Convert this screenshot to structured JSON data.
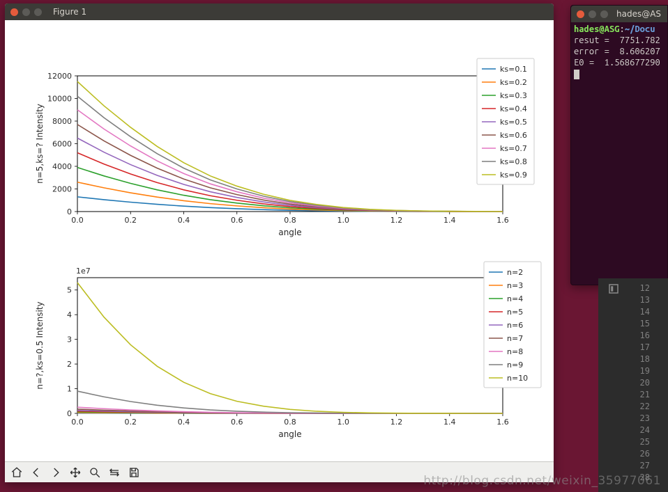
{
  "desktop": {
    "background_color": "#6a1633"
  },
  "figure_window": {
    "title": "Figure 1",
    "titlebar_bg": "#3c3b37",
    "titlebar_fg": "#d7d3cc",
    "close_color": "#e55b3c",
    "min_color": "#5c5b57",
    "max_color": "#5c5b57",
    "toolbar": {
      "buttons": [
        "home",
        "back",
        "forward",
        "pan",
        "zoom",
        "subplots",
        "save"
      ]
    },
    "chart1": {
      "type": "line",
      "xlabel": "angle",
      "ylabel": "n=5,ks=? Intensity",
      "label_fontsize": 12,
      "tick_fontsize": 11,
      "xlim": [
        0.0,
        1.6
      ],
      "xtick_step": 0.2,
      "ylim": [
        0,
        12000
      ],
      "ytick_step": 2000,
      "background_color": "#ffffff",
      "border_color": "#000000",
      "grid": false,
      "x_values": [
        0.0,
        0.1,
        0.2,
        0.3,
        0.4,
        0.5,
        0.6,
        0.7,
        0.8,
        0.9,
        1.0,
        1.1,
        1.2,
        1.3,
        1.4,
        1.5,
        1.6
      ],
      "series": [
        {
          "label": "ks=0.1",
          "color": "#1f77b4",
          "y": [
            1300,
            1050,
            830,
            640,
            480,
            350,
            250,
            170,
            110,
            70,
            40,
            22,
            12,
            6,
            3,
            1,
            0
          ]
        },
        {
          "label": "ks=0.2",
          "color": "#ff7f0e",
          "y": [
            2600,
            2100,
            1660,
            1280,
            960,
            700,
            500,
            340,
            220,
            140,
            80,
            44,
            24,
            12,
            6,
            2,
            0
          ]
        },
        {
          "label": "ks=0.3",
          "color": "#2ca02c",
          "y": [
            3900,
            3150,
            2490,
            1920,
            1440,
            1050,
            750,
            510,
            330,
            210,
            120,
            66,
            36,
            18,
            9,
            3,
            0
          ]
        },
        {
          "label": "ks=0.4",
          "color": "#d62728",
          "y": [
            5200,
            4200,
            3320,
            2560,
            1920,
            1400,
            1000,
            680,
            440,
            280,
            160,
            88,
            48,
            24,
            12,
            4,
            0
          ]
        },
        {
          "label": "ks=0.5",
          "color": "#9467bd",
          "y": [
            6500,
            5250,
            4150,
            3200,
            2400,
            1750,
            1250,
            850,
            550,
            350,
            200,
            110,
            60,
            30,
            15,
            5,
            0
          ]
        },
        {
          "label": "ks=0.6",
          "color": "#8c564b",
          "y": [
            7700,
            6250,
            4970,
            3840,
            2880,
            2100,
            1500,
            1020,
            660,
            420,
            240,
            132,
            72,
            36,
            18,
            6,
            0
          ]
        },
        {
          "label": "ks=0.7",
          "color": "#e377c2",
          "y": [
            9000,
            7300,
            5800,
            4480,
            3360,
            2450,
            1750,
            1190,
            770,
            490,
            280,
            154,
            84,
            42,
            21,
            7,
            0
          ]
        },
        {
          "label": "ks=0.8",
          "color": "#7f7f7f",
          "y": [
            10200,
            8300,
            6620,
            5120,
            3840,
            2800,
            2000,
            1360,
            880,
            560,
            320,
            176,
            96,
            48,
            24,
            8,
            0
          ]
        },
        {
          "label": "ks=0.9",
          "color": "#bcbd22",
          "y": [
            11500,
            9350,
            7450,
            5760,
            4320,
            3150,
            2250,
            1530,
            990,
            630,
            360,
            198,
            108,
            54,
            27,
            9,
            0
          ]
        }
      ],
      "legend": {
        "position": "upper right (outside)",
        "border_color": "#cccccc",
        "bg": "#ffffff"
      }
    },
    "chart2": {
      "type": "line",
      "xlabel": "angle",
      "ylabel": "n=?,ks=0.5 Intensity",
      "label_fontsize": 12,
      "tick_fontsize": 11,
      "sci_notation": "1e7",
      "xlim": [
        0.0,
        1.6
      ],
      "xtick_step": 0.2,
      "ylim": [
        0,
        5.5
      ],
      "ytick_step": 1,
      "ytick_labels": [
        "0",
        "1",
        "2",
        "3",
        "4",
        "5"
      ],
      "background_color": "#ffffff",
      "border_color": "#000000",
      "grid": false,
      "x_values": [
        0.0,
        0.1,
        0.2,
        0.3,
        0.4,
        0.5,
        0.6,
        0.7,
        0.8,
        0.9,
        1.0,
        1.1,
        1.2,
        1.3,
        1.4,
        1.5,
        1.6
      ],
      "series": [
        {
          "label": "n=2",
          "color": "#1f77b4",
          "y": [
            0.01,
            0.008,
            0.006,
            0.004,
            0.003,
            0.002,
            0.001,
            0.001,
            0,
            0,
            0,
            0,
            0,
            0,
            0,
            0,
            0
          ]
        },
        {
          "label": "n=3",
          "color": "#ff7f0e",
          "y": [
            0.03,
            0.024,
            0.018,
            0.013,
            0.009,
            0.006,
            0.004,
            0.002,
            0.001,
            0,
            0,
            0,
            0,
            0,
            0,
            0,
            0
          ]
        },
        {
          "label": "n=4",
          "color": "#2ca02c",
          "y": [
            0.06,
            0.047,
            0.035,
            0.025,
            0.017,
            0.011,
            0.007,
            0.004,
            0.002,
            0.001,
            0,
            0,
            0,
            0,
            0,
            0,
            0
          ]
        },
        {
          "label": "n=5",
          "color": "#d62728",
          "y": [
            0.09,
            0.07,
            0.053,
            0.038,
            0.026,
            0.017,
            0.011,
            0.006,
            0.003,
            0.002,
            0.001,
            0,
            0,
            0,
            0,
            0,
            0
          ]
        },
        {
          "label": "n=6",
          "color": "#9467bd",
          "y": [
            0.12,
            0.094,
            0.07,
            0.05,
            0.034,
            0.022,
            0.014,
            0.008,
            0.004,
            0.002,
            0.001,
            0,
            0,
            0,
            0,
            0,
            0
          ]
        },
        {
          "label": "n=7",
          "color": "#8c564b",
          "y": [
            0.17,
            0.13,
            0.096,
            0.068,
            0.046,
            0.03,
            0.018,
            0.011,
            0.006,
            0.003,
            0.001,
            0,
            0,
            0,
            0,
            0,
            0
          ]
        },
        {
          "label": "n=8",
          "color": "#e377c2",
          "y": [
            0.25,
            0.19,
            0.14,
            0.1,
            0.068,
            0.044,
            0.027,
            0.016,
            0.009,
            0.004,
            0.002,
            0.001,
            0,
            0,
            0,
            0,
            0
          ]
        },
        {
          "label": "n=9",
          "color": "#7f7f7f",
          "y": [
            0.9,
            0.67,
            0.48,
            0.33,
            0.22,
            0.14,
            0.085,
            0.05,
            0.028,
            0.015,
            0.007,
            0.003,
            0.001,
            0,
            0,
            0,
            0
          ]
        },
        {
          "label": "n=10",
          "color": "#bcbd22",
          "y": [
            5.3,
            3.9,
            2.78,
            1.91,
            1.26,
            0.8,
            0.49,
            0.29,
            0.16,
            0.085,
            0.042,
            0.019,
            0.008,
            0.003,
            0.001,
            0,
            0
          ]
        }
      ],
      "legend": {
        "position": "upper right (outside)",
        "border_color": "#cccccc",
        "bg": "#ffffff"
      }
    }
  },
  "terminal": {
    "title": "hades@AS",
    "titlebar_bg": "#3c3b37",
    "bg": "#2d0a22",
    "fg": "#d8d6d2",
    "font_family": "Ubuntu Mono",
    "prompt_user": "hades@ASG",
    "prompt_sep1": ":",
    "prompt_path": "~/Docu",
    "lines": [
      "resut =  7751.782",
      "error =  8.606207",
      "E0 =  1.568677290"
    ]
  },
  "editor": {
    "gutter_bg": "#2c2c2c",
    "line_number_color": "#808080",
    "start_line": 12,
    "end_line": 28
  },
  "watermark": "http://blog.csdn.net/weixin_35977061"
}
